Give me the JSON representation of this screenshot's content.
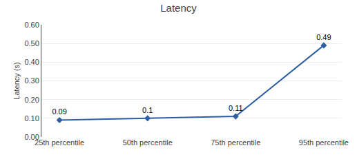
{
  "chart_data": {
    "type": "line",
    "title": "Latency",
    "ylabel": "Latency (s)",
    "categories": [
      "25th percentile",
      "50th percentile",
      "75th percentile",
      "95th percentile"
    ],
    "values": [
      0.09,
      0.1,
      0.11,
      0.49
    ],
    "color": "#2e5fa3",
    "marker": "diamond",
    "data_labels": true,
    "ylim": [
      0.0,
      0.6
    ],
    "yticks": [
      {
        "value": 0.0,
        "label": "0.00"
      },
      {
        "value": 0.1,
        "label": "0.10"
      },
      {
        "value": 0.2,
        "label": "0.20"
      },
      {
        "value": 0.3,
        "label": "0.30"
      },
      {
        "value": 0.4,
        "label": "0.40"
      },
      {
        "value": 0.5,
        "label": "0.50"
      },
      {
        "value": 0.6,
        "label": "0.60"
      }
    ],
    "grid": true
  }
}
